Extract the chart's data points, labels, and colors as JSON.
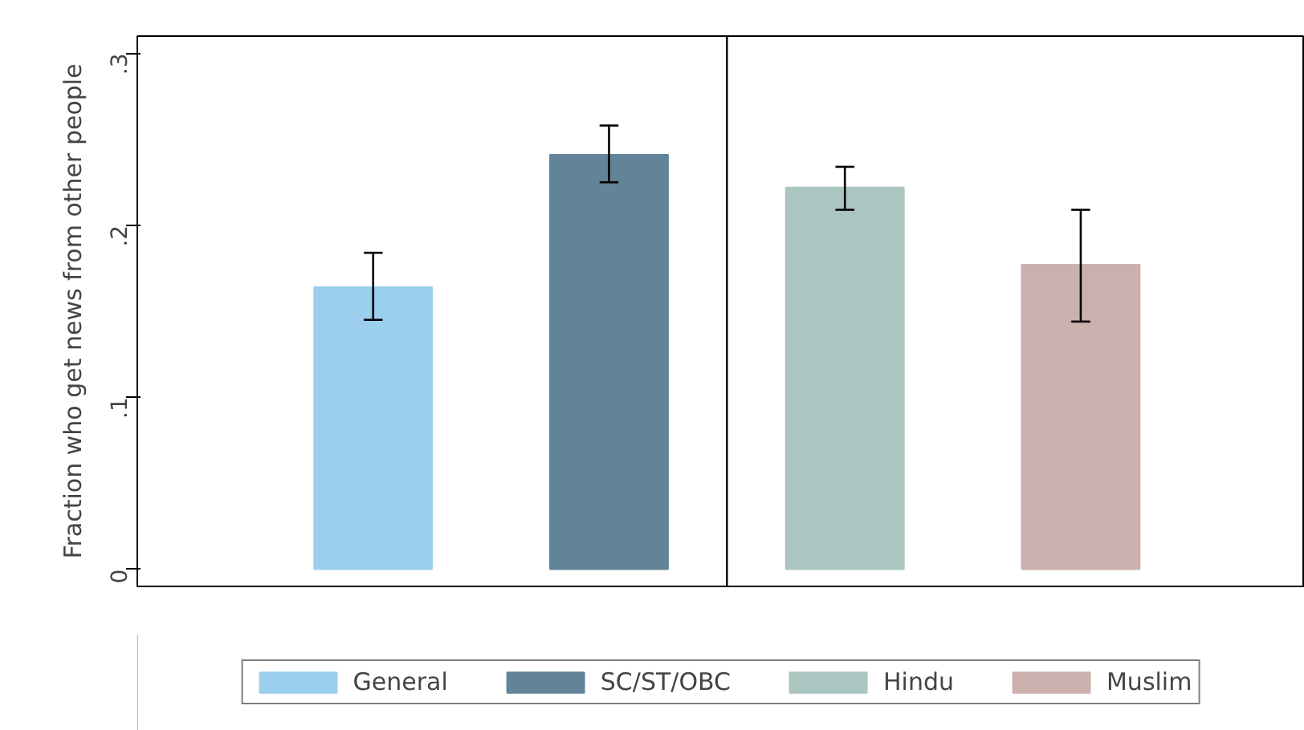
{
  "chart_data": {
    "type": "bar",
    "ylabel": "Fraction who get news from other people",
    "categories": [
      null,
      null,
      null,
      null
    ],
    "series": [
      {
        "name": "General",
        "color": "#9ccfee",
        "values": [
          0.164,
          null,
          null,
          null
        ],
        "errors": [
          [
            0.145,
            0.184
          ],
          null,
          null,
          null
        ]
      },
      {
        "name": "SC/ST/OBC",
        "color": "#628498",
        "values": [
          null,
          0.241,
          null,
          null
        ],
        "errors": [
          null,
          [
            0.225,
            0.258
          ],
          null,
          null
        ]
      },
      {
        "name": "Hindu",
        "color": "#abc6c1",
        "values": [
          null,
          null,
          0.222,
          null
        ],
        "errors": [
          null,
          null,
          [
            0.209,
            0.234
          ],
          null
        ]
      },
      {
        "name": "Muslim",
        "color": "#cbb1ad",
        "values": [
          null,
          null,
          null,
          0.177
        ],
        "errors": [
          null,
          null,
          null,
          [
            0.144,
            0.209
          ]
        ]
      }
    ],
    "ylim": [
      -0.01,
      0.31
    ],
    "yticks": [
      {
        "value": 0,
        "label": "0"
      },
      {
        "value": 0.1,
        "label": ".1"
      },
      {
        "value": 0.2,
        "label": ".2"
      },
      {
        "value": 0.3,
        "label": ".3"
      }
    ],
    "grid": false,
    "legend": "bottom"
  }
}
